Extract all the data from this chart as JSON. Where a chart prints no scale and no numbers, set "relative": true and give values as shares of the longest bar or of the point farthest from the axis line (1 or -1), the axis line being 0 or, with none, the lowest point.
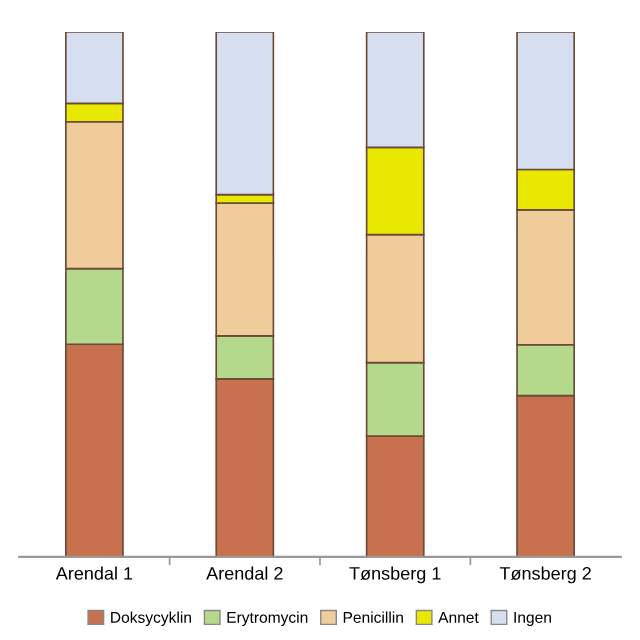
{
  "chart_data": {
    "type": "bar",
    "stacked": true,
    "relative": true,
    "legend": "bottom",
    "grid": false,
    "categories": [
      "Arendal 1",
      "Arendal 2",
      "Tønsberg 1",
      "Tønsberg 2"
    ],
    "series": [
      {
        "name": "Doksycyklin",
        "color": "#c8714f",
        "values": [
          0.405,
          0.339,
          0.23,
          0.307
        ]
      },
      {
        "name": "Erytromycin",
        "color": "#b5d98a",
        "values": [
          0.144,
          0.082,
          0.14,
          0.097
        ]
      },
      {
        "name": "Penicillin",
        "color": "#f0cc9a",
        "values": [
          0.28,
          0.253,
          0.244,
          0.257
        ]
      },
      {
        "name": "Annet",
        "color": "#e8e800",
        "values": [
          0.035,
          0.016,
          0.166,
          0.077
        ]
      },
      {
        "name": "Ingen",
        "color": "#d6dff0",
        "values": [
          0.136,
          0.31,
          0.22,
          0.262
        ]
      }
    ]
  }
}
